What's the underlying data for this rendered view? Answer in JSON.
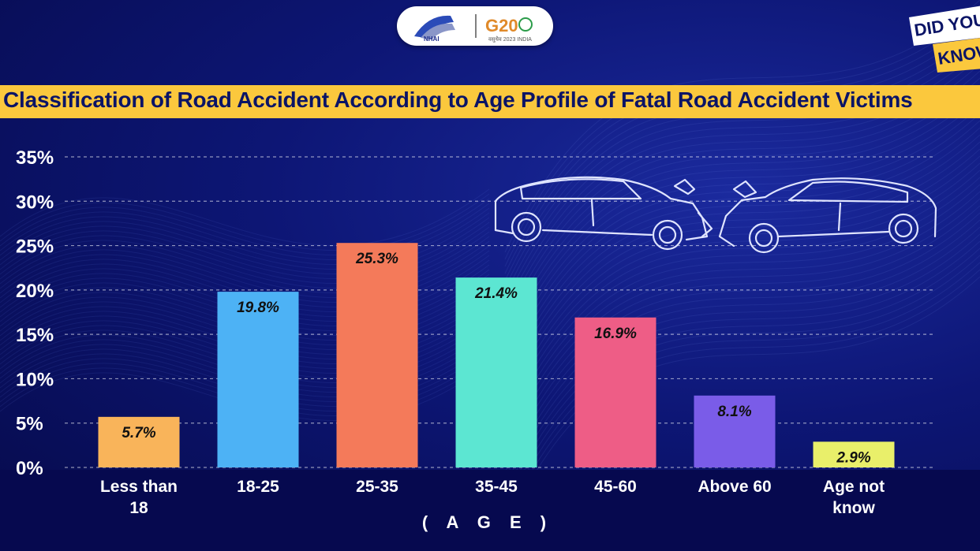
{
  "header": {
    "logo_left_text": "NHAI",
    "logo_right_text": "G20",
    "logo_right_sub": "वसुधैव 2023 INDIA",
    "badge_line1": "DID YOU",
    "badge_line2": "KNOW"
  },
  "chart_data": {
    "type": "bar",
    "title": "Classification of Road Accident According to Age Profile of Fatal Road Accident Victims",
    "xlabel": "( A G E )",
    "ylabel": "",
    "ylim": [
      0,
      35
    ],
    "yticks": [
      "0%",
      "5%",
      "10%",
      "15%",
      "20%",
      "25%",
      "30%",
      "35%"
    ],
    "grid": true,
    "categories": [
      "Less than 18",
      "18-25",
      "25-35",
      "35-45",
      "45-60",
      "Above 60",
      "Age not know"
    ],
    "values": [
      5.7,
      19.8,
      25.3,
      21.4,
      16.9,
      8.1,
      2.9
    ],
    "value_labels": [
      "5.7%",
      "19.8%",
      "25.3%",
      "21.4%",
      "16.9%",
      "8.1%",
      "2.9%"
    ],
    "colors": [
      "#f9b45a",
      "#4db2f5",
      "#f47a5a",
      "#5ce6d2",
      "#ee5d86",
      "#7a5ce8",
      "#e9ef6a"
    ]
  }
}
